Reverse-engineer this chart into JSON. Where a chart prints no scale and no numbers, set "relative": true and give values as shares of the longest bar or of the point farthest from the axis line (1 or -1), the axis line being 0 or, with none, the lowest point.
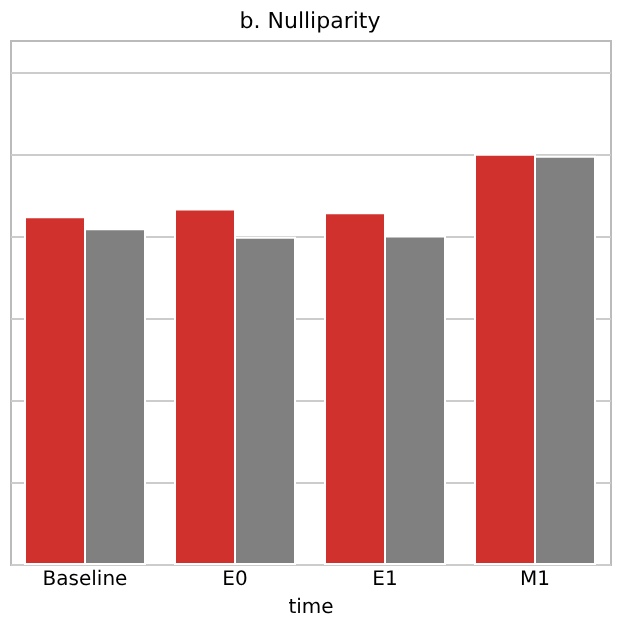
{
  "chart_data": {
    "type": "bar",
    "title": "b. Nulliparity",
    "xlabel": "time",
    "relative": true,
    "grid": "y",
    "categories": [
      "Baseline",
      "E0",
      "E1",
      "M1"
    ],
    "series": [
      {
        "color": "#d0312d",
        "values": [
          0.847,
          0.866,
          0.857,
          1.0
        ]
      },
      {
        "color": "#808080",
        "values": [
          0.818,
          0.797,
          0.8,
          0.995
        ]
      }
    ]
  }
}
